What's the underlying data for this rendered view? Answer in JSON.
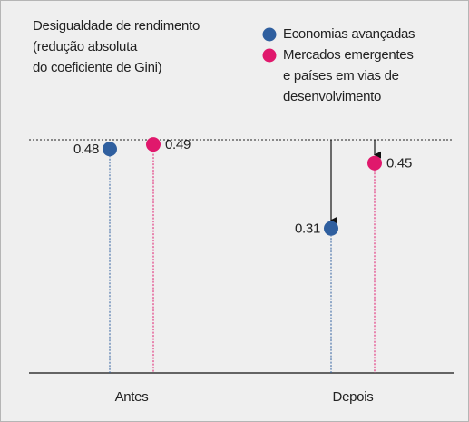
{
  "chart_data": {
    "type": "dot",
    "title": "Desigualdade de rendimento\n(redução absoluta\ndo coeficiente de Gini)",
    "categories": [
      "Antes",
      "Depois"
    ],
    "series": [
      {
        "name": "Economias avançadas",
        "color": "#2f5f9f",
        "values": [
          0.48,
          0.31
        ]
      },
      {
        "name": "Mercados emergentes\ne países em vias de\ndesenvolvimento",
        "color": "#e0186c",
        "values": [
          0.49,
          0.45
        ]
      }
    ],
    "ylim": [
      0,
      0.5
    ]
  }
}
